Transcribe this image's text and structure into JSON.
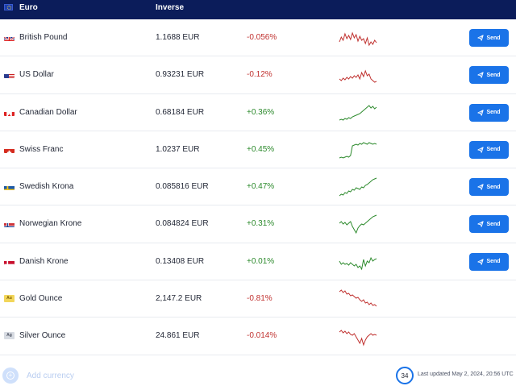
{
  "header": {
    "base_currency": "Euro",
    "inverse_label": "Inverse"
  },
  "colors": {
    "header_bg": "#0b1c5a",
    "negative": "#c0312f",
    "positive": "#2c8a2c",
    "send_button": "#1a73e8"
  },
  "rows": [
    {
      "name": "British Pound",
      "flag": "gb-flag-icon",
      "rate": "1.1688 EUR",
      "change": "-0.056%",
      "trend": "negative",
      "send_label": "Send",
      "spark": [
        20,
        14,
        18,
        10,
        16,
        12,
        17,
        9,
        15,
        11,
        19,
        13,
        18,
        16,
        22,
        15,
        24,
        20,
        23,
        18,
        21
      ]
    },
    {
      "name": "US Dollar",
      "flag": "us-flag-icon",
      "rate": "0.93231 EUR",
      "change": "-0.12%",
      "trend": "negative",
      "send_label": "Send",
      "spark": [
        20,
        22,
        19,
        21,
        18,
        20,
        17,
        19,
        16,
        18,
        15,
        20,
        12,
        17,
        10,
        16,
        14,
        20,
        22,
        24,
        23
      ]
    },
    {
      "name": "Canadian Dollar",
      "flag": "ca-flag-icon",
      "rate": "0.68184 EUR",
      "change": "+0.36%",
      "trend": "positive",
      "send_label": "Send",
      "spark": [
        24,
        23,
        24,
        22,
        23,
        21,
        22,
        20,
        19,
        18,
        17,
        16,
        14,
        12,
        10,
        8,
        6,
        9,
        7,
        10,
        8
      ]
    },
    {
      "name": "Swiss Franc",
      "flag": "ch-flag-icon",
      "rate": "1.0237 EUR",
      "change": "+0.45%",
      "trend": "positive",
      "send_label": "Send",
      "spark": [
        25,
        24,
        25,
        24,
        23,
        24,
        22,
        10,
        9,
        8,
        9,
        7,
        8,
        6,
        7,
        8,
        6,
        7,
        8,
        7,
        8
      ]
    },
    {
      "name": "Swedish Krona",
      "flag": "se-flag-icon",
      "rate": "0.085816 EUR",
      "change": "+0.47%",
      "trend": "positive",
      "send_label": "Send",
      "spark": [
        26,
        24,
        25,
        22,
        23,
        20,
        21,
        18,
        19,
        16,
        17,
        18,
        15,
        16,
        13,
        12,
        10,
        8,
        6,
        5,
        4
      ]
    },
    {
      "name": "Norwegian Krone",
      "flag": "no-flag-icon",
      "rate": "0.084824 EUR",
      "change": "+0.31%",
      "trend": "positive",
      "send_label": "Send",
      "spark": [
        14,
        12,
        15,
        13,
        16,
        14,
        12,
        18,
        22,
        26,
        20,
        17,
        15,
        16,
        14,
        12,
        10,
        8,
        6,
        5,
        4
      ]
    },
    {
      "name": "Danish Krone",
      "flag": "dk-flag-icon",
      "rate": "0.13408 EUR",
      "change": "+0.01%",
      "trend": "positive",
      "send_label": "Send",
      "spark": [
        14,
        18,
        16,
        18,
        17,
        19,
        16,
        18,
        20,
        18,
        22,
        20,
        24,
        12,
        20,
        14,
        16,
        10,
        14,
        12,
        11
      ]
    },
    {
      "name": "Gold Ounce",
      "flag": "au-metal-icon",
      "metal_code": "Au",
      "rate": "2,147.2 EUR",
      "change": "-0.81%",
      "trend": "negative",
      "send_label": "",
      "spark": [
        6,
        4,
        7,
        5,
        9,
        8,
        11,
        10,
        12,
        14,
        13,
        16,
        18,
        16,
        20,
        19,
        22,
        20,
        23,
        22,
        24
      ]
    },
    {
      "name": "Silver Ounce",
      "flag": "ag-metal-icon",
      "metal_code": "Ag",
      "rate": "24.861 EUR",
      "change": "-0.014%",
      "trend": "negative",
      "send_label": "",
      "spark": [
        10,
        8,
        11,
        9,
        12,
        10,
        13,
        14,
        12,
        16,
        20,
        24,
        18,
        26,
        20,
        16,
        14,
        12,
        14,
        13,
        14
      ]
    }
  ],
  "footer": {
    "add_currency_label": "Add currency",
    "timer_value": "34",
    "last_updated": "Last updated May 2, 2024, 20:56 UTC"
  }
}
